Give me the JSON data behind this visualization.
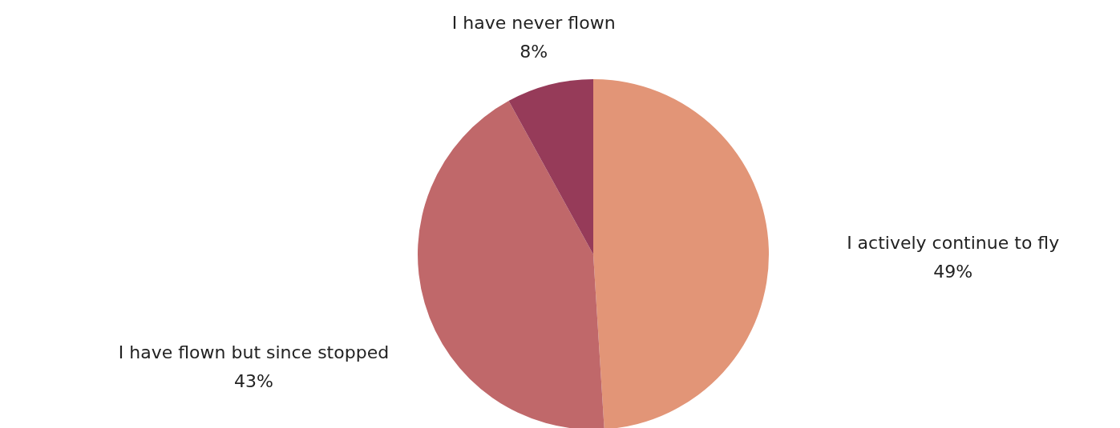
{
  "chart_data": {
    "type": "pie",
    "categories": [
      "I actively continue to fly",
      "I have flown but since stopped",
      "I have never flown"
    ],
    "values": [
      49,
      43,
      8
    ],
    "value_labels": [
      "49%",
      "43%",
      "8%"
    ],
    "colors": [
      "#e29577",
      "#c0686a",
      "#963b59"
    ]
  }
}
